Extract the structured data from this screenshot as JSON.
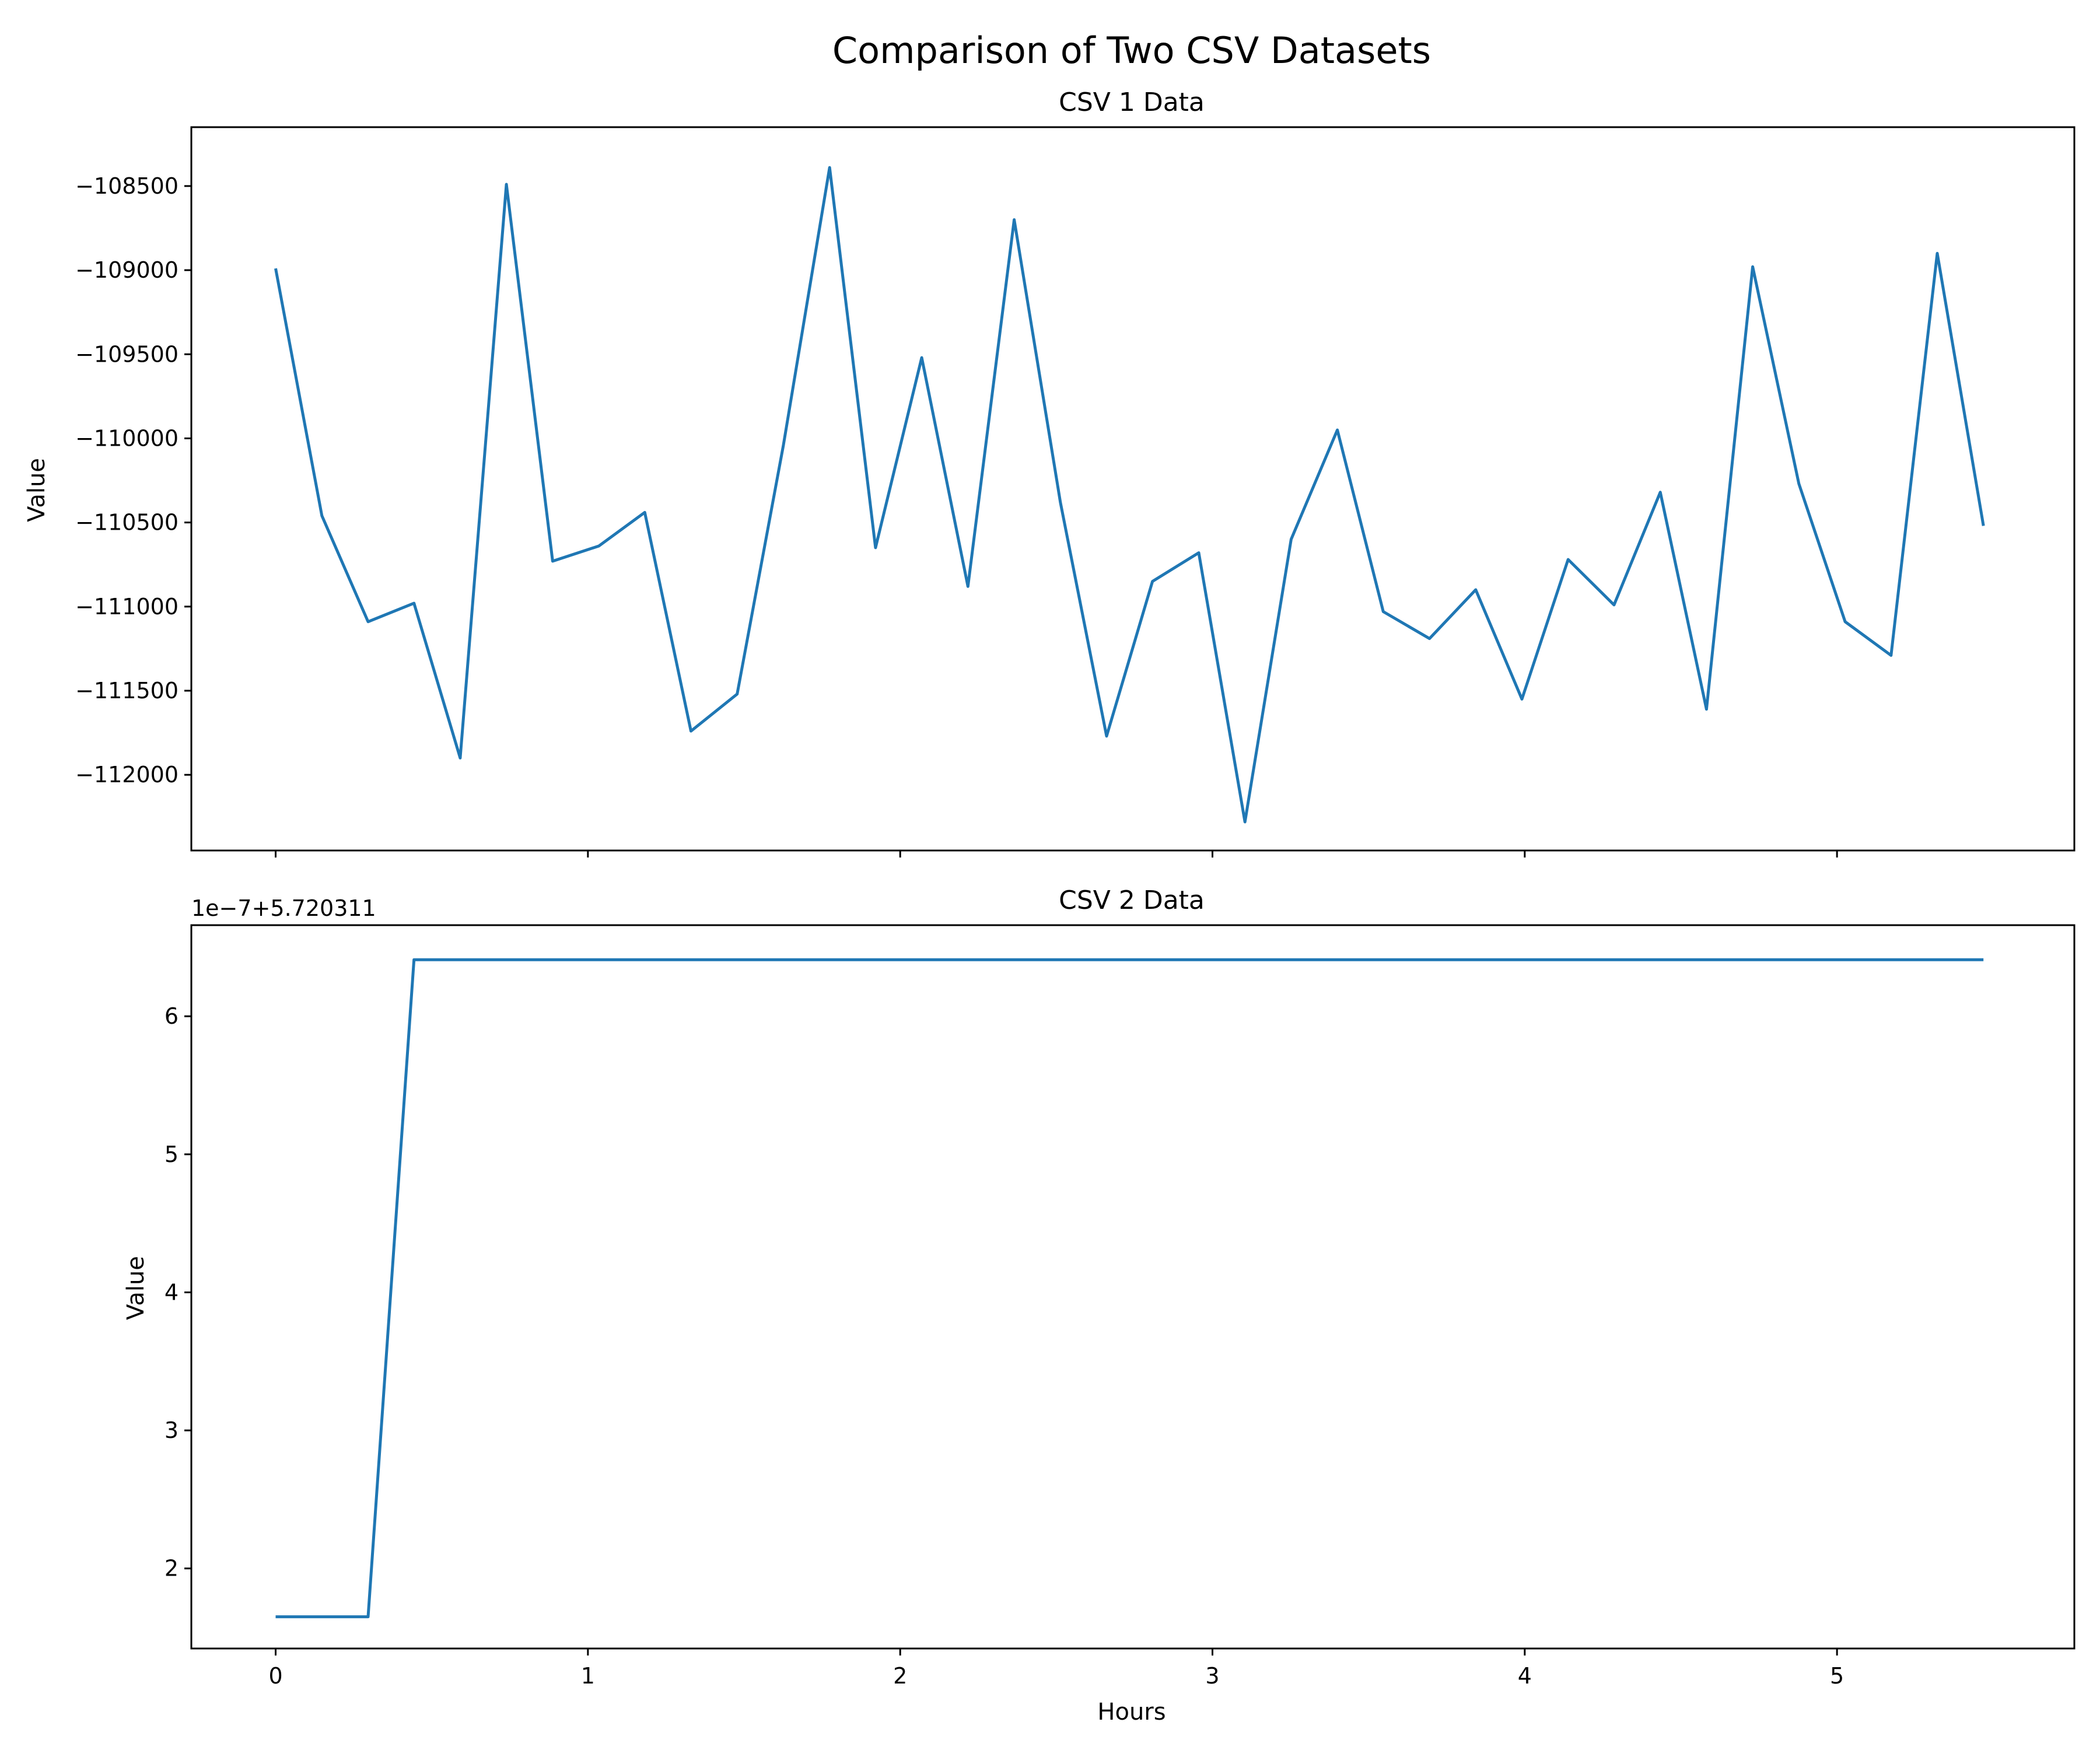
{
  "title": "Comparison of Two CSV Datasets",
  "colors": {
    "series": "#1f77b4"
  },
  "chart_data": [
    {
      "type": "line",
      "title": "CSV 1 Data",
      "xlabel": "",
      "ylabel": "Value",
      "xlim": [
        -0.27,
        5.76
      ],
      "ylim": [
        -112450,
        -108150
      ],
      "xticks": [
        0,
        1,
        2,
        3,
        4,
        5
      ],
      "xtick_labels_visible": false,
      "yticks": [
        -112000,
        -111500,
        -111000,
        -110500,
        -110000,
        -109500,
        -109000,
        -108500
      ],
      "ytick_labels": [
        "−112000",
        "−111500",
        "−111000",
        "−110500",
        "−110000",
        "−109500",
        "−109000",
        "−108500"
      ],
      "grid": false,
      "x": [
        0,
        0.148,
        0.296,
        0.443,
        0.591,
        0.739,
        0.887,
        1.035,
        1.182,
        1.33,
        1.478,
        1.626,
        1.774,
        1.921,
        2.069,
        2.217,
        2.365,
        2.513,
        2.661,
        2.808,
        2.956,
        3.104,
        3.252,
        3.4,
        3.547,
        3.695,
        3.843,
        3.991,
        4.139,
        4.286,
        4.434,
        4.582,
        4.73,
        4.878,
        5.026,
        5.173,
        5.321,
        5.469
      ],
      "y": [
        -108990,
        -110460,
        -111090,
        -110980,
        -111900,
        -108490,
        -110730,
        -110640,
        -110440,
        -111740,
        -111520,
        -110040,
        -108390,
        -110650,
        -109520,
        -110880,
        -108700,
        -110380,
        -111770,
        -110850,
        -110680,
        -112280,
        -110600,
        -109950,
        -111030,
        -111190,
        -110900,
        -111550,
        -110720,
        -110990,
        -110320,
        -111610,
        -108980,
        -110270,
        -111090,
        -111290,
        -108900,
        -110520
      ]
    },
    {
      "type": "line",
      "title": "CSV 2 Data",
      "xlabel": "Hours",
      "ylabel": "Value",
      "offset_text": "1e−7+5.720311",
      "xlim": [
        -0.27,
        5.76
      ],
      "ylim": [
        1.42,
        6.66
      ],
      "xticks": [
        0,
        1,
        2,
        3,
        4,
        5
      ],
      "xtick_labels": [
        "0",
        "1",
        "2",
        "3",
        "4",
        "5"
      ],
      "yticks": [
        2,
        3,
        4,
        5,
        6
      ],
      "ytick_labels": [
        "2",
        "3",
        "4",
        "5",
        "6"
      ],
      "grid": false,
      "x": [
        0,
        0.148,
        0.296,
        0.443,
        0.591,
        0.739,
        0.887,
        1.035,
        1.182,
        1.33,
        1.478,
        1.626,
        1.774,
        1.921,
        2.069,
        2.217,
        2.365,
        2.513,
        2.661,
        2.808,
        2.956,
        3.104,
        3.252,
        3.4,
        3.547,
        3.695,
        3.843,
        3.991,
        4.139,
        4.286,
        4.434,
        4.582,
        4.73,
        4.878,
        5.026,
        5.173,
        5.321,
        5.469
      ],
      "y": [
        1.65,
        1.65,
        1.65,
        6.41,
        6.41,
        6.41,
        6.41,
        6.41,
        6.41,
        6.41,
        6.41,
        6.41,
        6.41,
        6.41,
        6.41,
        6.41,
        6.41,
        6.41,
        6.41,
        6.41,
        6.41,
        6.41,
        6.41,
        6.41,
        6.41,
        6.41,
        6.41,
        6.41,
        6.41,
        6.41,
        6.41,
        6.41,
        6.41,
        6.41,
        6.41,
        6.41,
        6.41,
        6.41
      ]
    }
  ]
}
